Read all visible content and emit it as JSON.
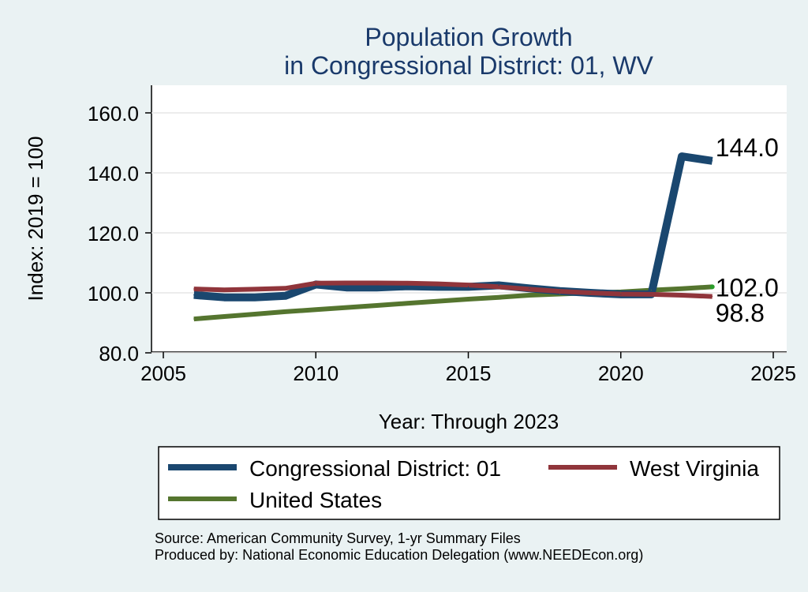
{
  "chart_data": {
    "type": "line",
    "title": "Population Growth",
    "subtitle": "in Congressional District: 01, WV",
    "xlabel": "Year: Through 2023",
    "ylabel": "Index: 2019 = 100",
    "xlim": [
      2005,
      2025
    ],
    "ylim": [
      75,
      165
    ],
    "xticks": [
      2005,
      2010,
      2015,
      2020,
      2025
    ],
    "xtick_labels": [
      "2005",
      "2010",
      "2015",
      "2020",
      "2025"
    ],
    "yticks": [
      80,
      100,
      120,
      140,
      160
    ],
    "ytick_labels": [
      "80.0",
      "100.0",
      "120.0",
      "140.0",
      "160.0"
    ],
    "grid": "horizontal",
    "legend_position": "bottom",
    "series": [
      {
        "name": "Congressional District: 01",
        "color": "#1a476f",
        "x": [
          2006,
          2007,
          2008,
          2009,
          2010,
          2011,
          2012,
          2013,
          2014,
          2015,
          2016,
          2017,
          2018,
          2019,
          2020,
          2021,
          2022,
          2023
        ],
        "y": [
          99.3,
          98.5,
          98.5,
          99.0,
          102.8,
          101.8,
          101.8,
          102.2,
          102.0,
          102.0,
          102.5,
          101.5,
          100.6,
          100.0,
          99.5,
          99.5,
          145.5,
          144.0
        ],
        "end_label": "144.0"
      },
      {
        "name": "West Virginia",
        "color": "#90353b",
        "x": [
          2006,
          2007,
          2008,
          2009,
          2010,
          2011,
          2012,
          2013,
          2014,
          2015,
          2016,
          2017,
          2018,
          2019,
          2020,
          2021,
          2022,
          2023
        ],
        "y": [
          101.3,
          101.0,
          101.2,
          101.5,
          103.2,
          103.3,
          103.3,
          103.2,
          103.0,
          102.6,
          102.0,
          101.2,
          100.5,
          100.0,
          99.6,
          99.5,
          99.2,
          98.8
        ],
        "end_label": "98.8"
      },
      {
        "name": "United States",
        "color": "#55752f",
        "x": [
          2006,
          2007,
          2008,
          2009,
          2010,
          2011,
          2012,
          2013,
          2014,
          2015,
          2016,
          2017,
          2018,
          2019,
          2020,
          2021,
          2022,
          2023
        ],
        "y": [
          91.3,
          92.1,
          92.9,
          93.7,
          94.4,
          95.1,
          95.8,
          96.5,
          97.2,
          97.9,
          98.5,
          99.2,
          99.6,
          100.0,
          100.3,
          100.9,
          101.4,
          102.0
        ],
        "end_label": "102.0"
      }
    ]
  },
  "source": {
    "line1": "Source: American Community Survey, 1-yr Summary Files",
    "line2": "Produced by: National Economic Education Delegation (www.NEEDEcon.org)"
  }
}
